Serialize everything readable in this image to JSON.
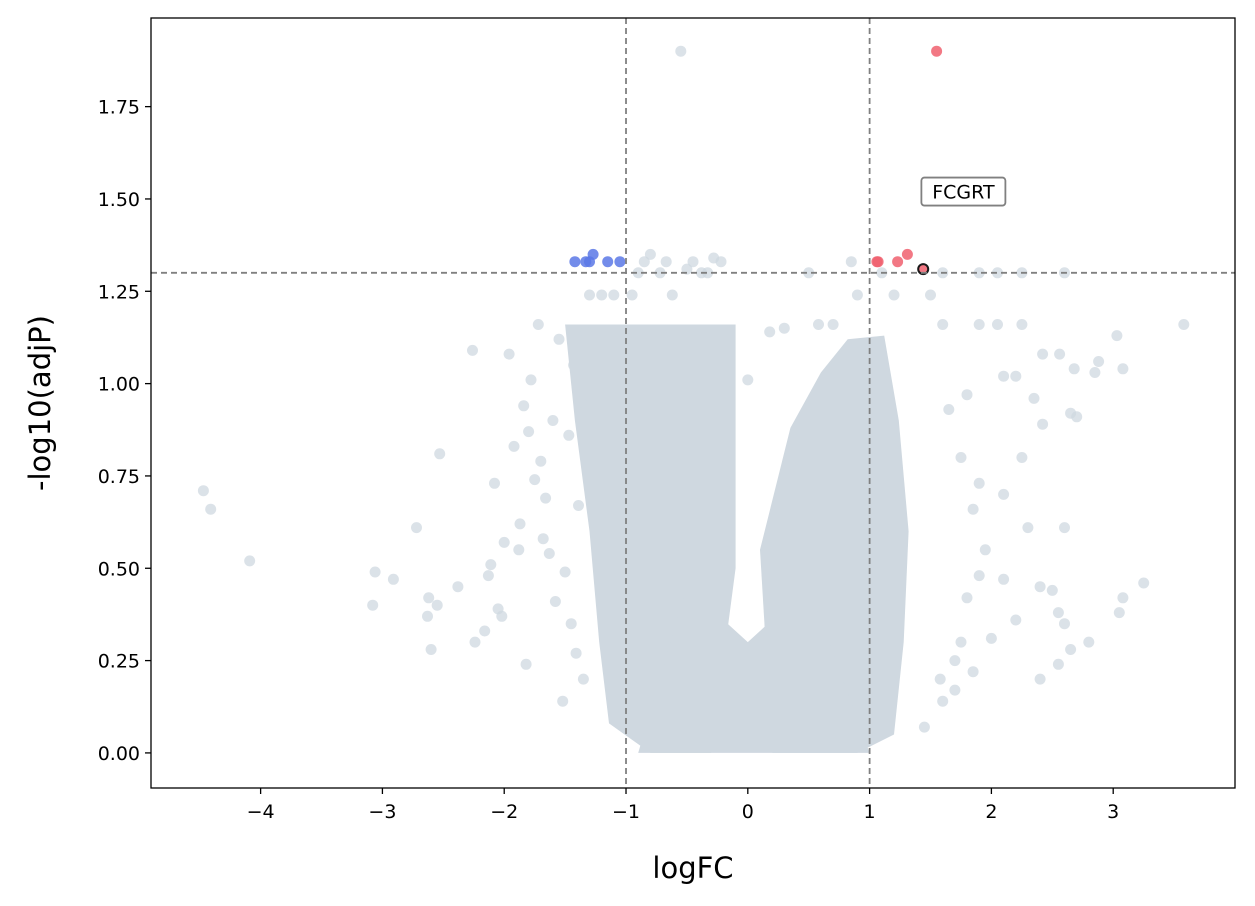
{
  "chart_data": {
    "type": "scatter",
    "title": "",
    "xlabel": "logFC",
    "ylabel": "-log10(adjP)",
    "xlim": [
      -4.9,
      4.0
    ],
    "ylim": [
      -0.095,
      1.99
    ],
    "xticks": [
      -4,
      -3,
      -2,
      -1,
      0,
      1,
      2,
      3
    ],
    "xtick_labels": [
      "−4",
      "−3",
      "−2",
      "−1",
      "0",
      "1",
      "2",
      "3"
    ],
    "yticks": [
      0.0,
      0.25,
      0.5,
      0.75,
      1.0,
      1.25,
      1.5,
      1.75
    ],
    "ytick_labels": [
      "0.00",
      "0.25",
      "0.50",
      "0.75",
      "1.00",
      "1.25",
      "1.50",
      "1.75"
    ],
    "grid": false,
    "thresholds": {
      "logfc": [
        -1,
        1
      ],
      "neg_log10_adjp": 1.3
    },
    "colors": {
      "ns": "#cfd8e0",
      "up": "#f0606e",
      "down": "#5a78e6",
      "highlight": "#1a1a1a",
      "threshold": "#808080"
    },
    "series": [
      {
        "role": "ns",
        "points": [
          [
            -4.47,
            0.71
          ],
          [
            -4.41,
            0.66
          ],
          [
            -4.09,
            0.52
          ],
          [
            -3.08,
            0.4
          ],
          [
            -3.06,
            0.49
          ],
          [
            -2.91,
            0.47
          ],
          [
            -2.72,
            0.61
          ],
          [
            -2.63,
            0.37
          ],
          [
            -2.62,
            0.42
          ],
          [
            -2.6,
            0.28
          ],
          [
            -2.55,
            0.4
          ],
          [
            -2.53,
            0.81
          ],
          [
            -2.38,
            0.45
          ],
          [
            -2.26,
            1.09
          ],
          [
            -2.24,
            0.3
          ],
          [
            -2.16,
            0.33
          ],
          [
            -2.13,
            0.48
          ],
          [
            -2.11,
            0.51
          ],
          [
            -2.08,
            0.73
          ],
          [
            -2.05,
            0.39
          ],
          [
            -2.02,
            0.37
          ],
          [
            -2.0,
            0.57
          ],
          [
            -1.96,
            1.08
          ],
          [
            -1.92,
            0.83
          ],
          [
            -1.88,
            0.55
          ],
          [
            -1.87,
            0.62
          ],
          [
            -1.84,
            0.94
          ],
          [
            -1.82,
            0.24
          ],
          [
            -1.8,
            0.87
          ],
          [
            -1.78,
            1.01
          ],
          [
            -1.75,
            0.74
          ],
          [
            -1.72,
            1.16
          ],
          [
            -1.7,
            0.79
          ],
          [
            -1.68,
            0.58
          ],
          [
            -1.66,
            0.69
          ],
          [
            -1.63,
            0.54
          ],
          [
            -1.6,
            0.9
          ],
          [
            -1.58,
            0.41
          ],
          [
            -1.55,
            1.12
          ],
          [
            -1.52,
            0.14
          ],
          [
            -1.5,
            0.49
          ],
          [
            -1.47,
            0.86
          ],
          [
            -1.45,
            0.35
          ],
          [
            -1.43,
            1.05
          ],
          [
            -1.41,
            0.27
          ],
          [
            -1.39,
            0.67
          ],
          [
            -1.37,
            0.95
          ],
          [
            -1.35,
            0.2
          ],
          [
            -1.33,
            1.14
          ],
          [
            -1.3,
            1.24
          ],
          [
            -1.2,
            1.24
          ],
          [
            -1.1,
            1.24
          ],
          [
            -0.95,
            1.24
          ],
          [
            -0.9,
            1.3
          ],
          [
            -0.85,
            1.33
          ],
          [
            -0.8,
            1.35
          ],
          [
            -0.72,
            1.3
          ],
          [
            -0.67,
            1.33
          ],
          [
            -0.62,
            1.24
          ],
          [
            -0.55,
            1.9
          ],
          [
            -0.5,
            1.31
          ],
          [
            -0.45,
            1.33
          ],
          [
            -0.38,
            1.3
          ],
          [
            -0.33,
            1.3
          ],
          [
            -0.28,
            1.34
          ],
          [
            -0.22,
            1.33
          ],
          [
            0.0,
            1.01
          ],
          [
            0.18,
            1.14
          ],
          [
            0.3,
            1.15
          ],
          [
            0.5,
            1.3
          ],
          [
            0.58,
            1.16
          ],
          [
            0.7,
            1.16
          ],
          [
            0.85,
            1.33
          ],
          [
            0.9,
            1.24
          ],
          [
            1.1,
            1.3
          ],
          [
            1.2,
            1.24
          ],
          [
            1.6,
            1.3
          ],
          [
            1.9,
            1.3
          ],
          [
            2.05,
            1.3
          ],
          [
            2.25,
            1.3
          ],
          [
            2.6,
            1.3
          ],
          [
            1.5,
            1.24
          ],
          [
            1.6,
            1.16
          ],
          [
            1.9,
            1.16
          ],
          [
            2.05,
            1.16
          ],
          [
            2.25,
            1.16
          ],
          [
            2.42,
            1.08
          ],
          [
            2.56,
            1.08
          ],
          [
            2.68,
            1.04
          ],
          [
            2.85,
            1.03
          ],
          [
            2.88,
            1.06
          ],
          [
            3.03,
            1.13
          ],
          [
            3.08,
            1.04
          ],
          [
            3.58,
            1.16
          ],
          [
            2.1,
            1.02
          ],
          [
            2.2,
            1.02
          ],
          [
            2.35,
            0.96
          ],
          [
            2.42,
            0.89
          ],
          [
            2.65,
            0.92
          ],
          [
            2.7,
            0.91
          ],
          [
            2.25,
            0.8
          ],
          [
            2.1,
            0.7
          ],
          [
            2.3,
            0.61
          ],
          [
            2.6,
            0.61
          ],
          [
            2.4,
            0.45
          ],
          [
            2.5,
            0.44
          ],
          [
            2.55,
            0.38
          ],
          [
            2.6,
            0.35
          ],
          [
            2.65,
            0.28
          ],
          [
            2.55,
            0.24
          ],
          [
            2.4,
            0.2
          ],
          [
            2.2,
            0.36
          ],
          [
            2.0,
            0.31
          ],
          [
            2.1,
            0.47
          ],
          [
            1.85,
            0.22
          ],
          [
            1.7,
            0.17
          ],
          [
            1.6,
            0.14
          ],
          [
            3.05,
            0.38
          ],
          [
            3.08,
            0.42
          ],
          [
            3.25,
            0.46
          ],
          [
            2.8,
            0.3
          ],
          [
            1.45,
            0.07
          ],
          [
            1.58,
            0.2
          ],
          [
            1.7,
            0.25
          ],
          [
            1.75,
            0.3
          ],
          [
            1.8,
            0.42
          ],
          [
            1.9,
            0.48
          ],
          [
            1.95,
            0.55
          ],
          [
            1.85,
            0.66
          ],
          [
            1.9,
            0.73
          ],
          [
            1.75,
            0.8
          ],
          [
            1.65,
            0.93
          ],
          [
            1.8,
            0.97
          ]
        ]
      },
      {
        "role": "down",
        "points": [
          [
            -1.42,
            1.33
          ],
          [
            -1.33,
            1.33
          ],
          [
            -1.3,
            1.33
          ],
          [
            -1.27,
            1.35
          ],
          [
            -1.15,
            1.33
          ],
          [
            -1.05,
            1.33
          ]
        ]
      },
      {
        "role": "up",
        "points": [
          [
            1.06,
            1.33
          ],
          [
            1.07,
            1.33
          ],
          [
            1.23,
            1.33
          ],
          [
            1.31,
            1.35
          ],
          [
            1.55,
            1.9
          ]
        ]
      },
      {
        "role": "highlight",
        "name": "FCGRT",
        "points": [
          [
            1.44,
            1.31
          ]
        ]
      }
    ],
    "annotations": [
      {
        "text": "FCGRT",
        "x": 1.77,
        "y": 1.52,
        "point": [
          1.44,
          1.31
        ]
      }
    ]
  }
}
